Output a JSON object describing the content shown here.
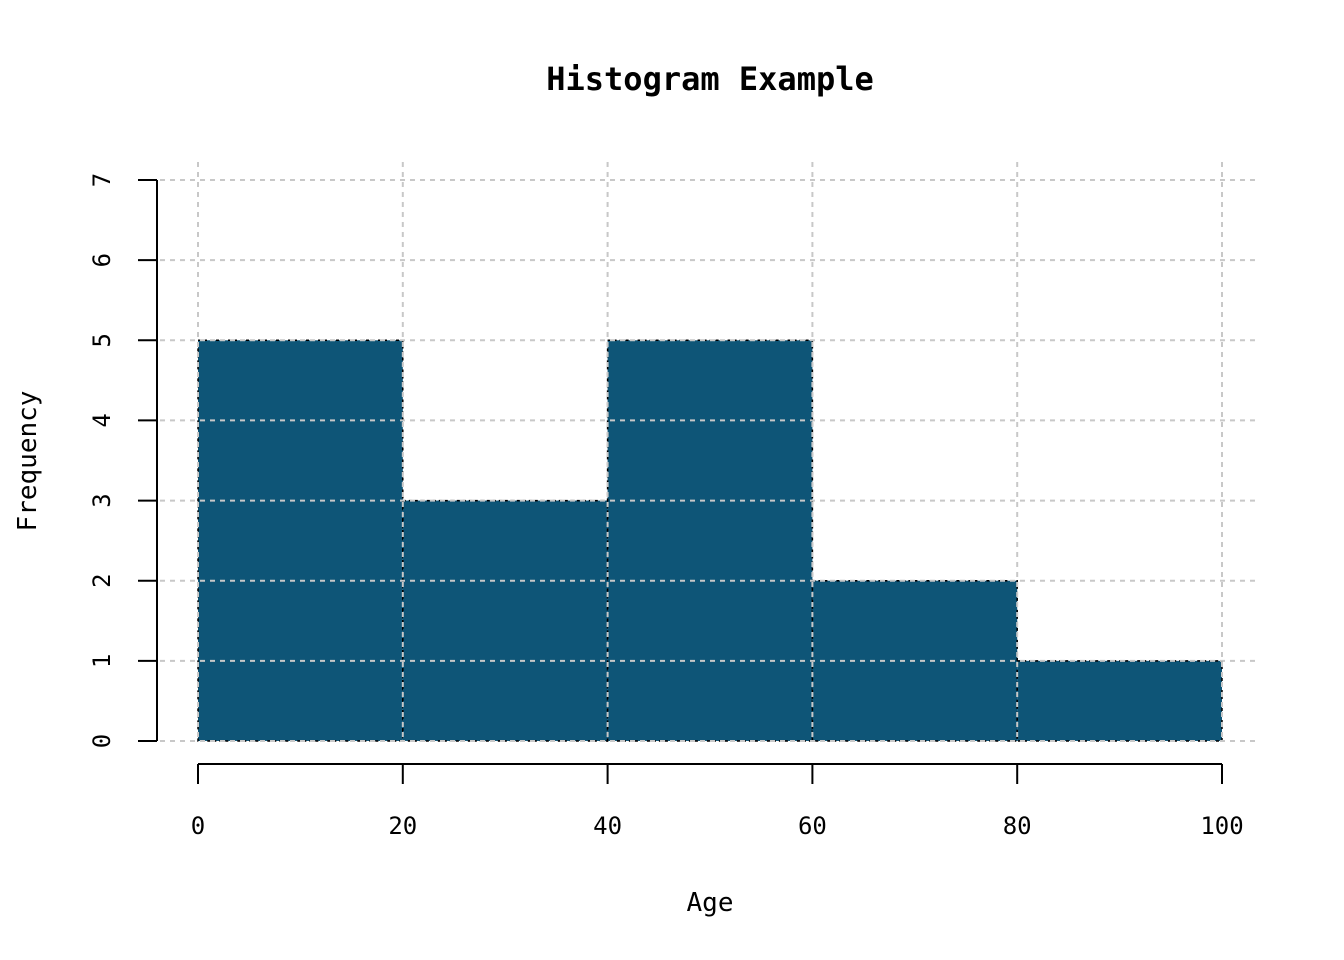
{
  "chart_data": {
    "type": "bar",
    "title": "Histogram Example",
    "xlabel": "Age",
    "ylabel": "Frequency",
    "bins": [
      {
        "x0": 0,
        "x1": 20,
        "value": 5
      },
      {
        "x0": 20,
        "x1": 40,
        "value": 3
      },
      {
        "x0": 40,
        "x1": 60,
        "value": 5
      },
      {
        "x0": 60,
        "x1": 80,
        "value": 2
      },
      {
        "x0": 80,
        "x1": 100,
        "value": 1
      }
    ],
    "xlim": [
      0,
      100
    ],
    "ylim": [
      0,
      7
    ],
    "xticks": [
      0,
      20,
      40,
      60,
      80,
      100
    ],
    "yticks": [
      0,
      1,
      2,
      3,
      4,
      5,
      6,
      7
    ],
    "grid": true,
    "bar_color": "#0e5577",
    "grid_color": "#c8c8c8"
  }
}
